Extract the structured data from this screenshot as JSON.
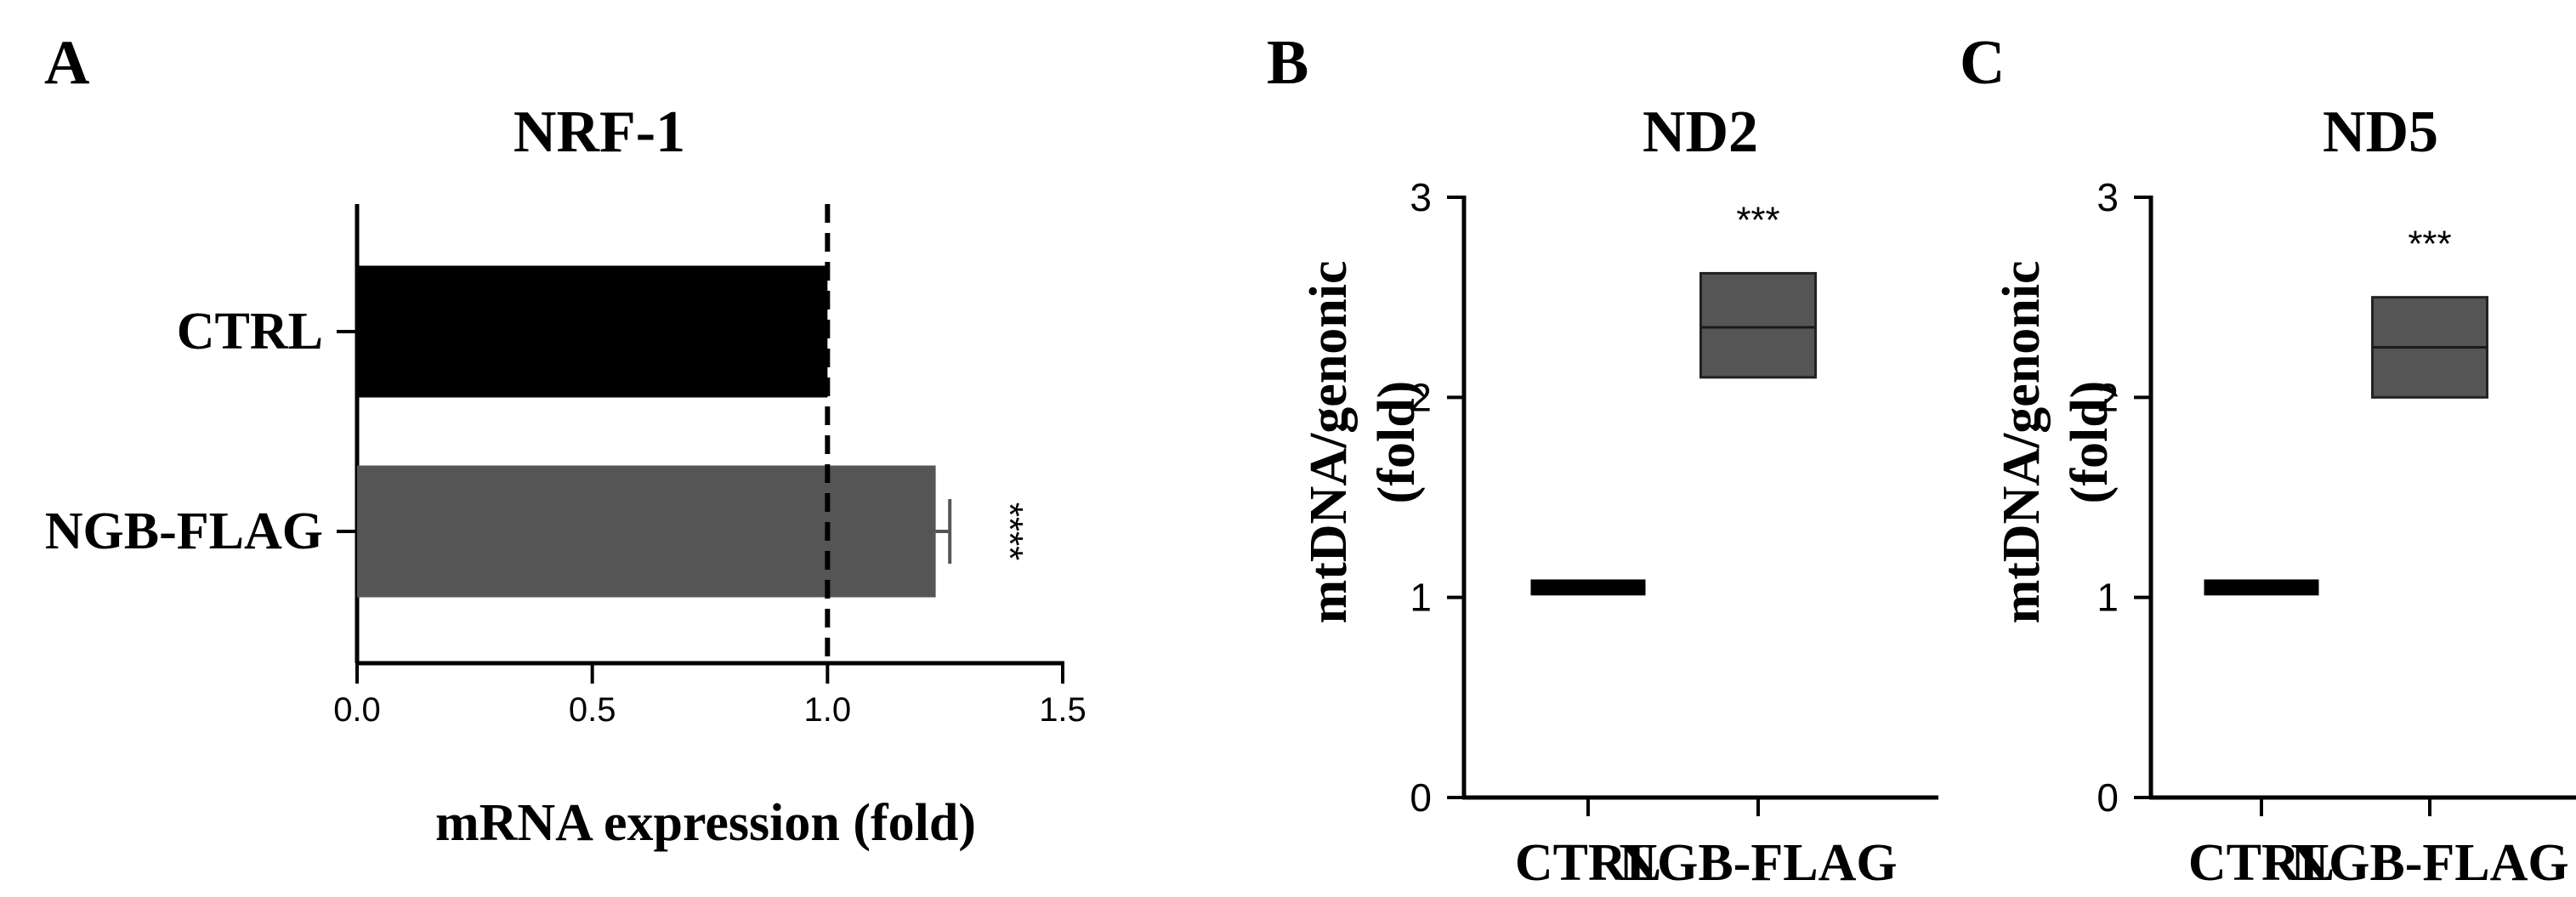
{
  "figure": {
    "colors": {
      "ctrl": "#000000",
      "ngb": "#555555",
      "axis": "#000000",
      "errorbar": "#555555"
    }
  },
  "chart_data": [
    {
      "panel": "A",
      "type": "bar",
      "orientation": "horizontal",
      "title": "NRF-1",
      "categories": [
        "CTRL",
        "NGB-FLAG"
      ],
      "values": [
        1.0,
        1.23
      ],
      "errors": [
        0.0,
        0.03
      ],
      "xlabel": "mRNA expression (fold)",
      "ylabel": "",
      "xlim": [
        0.0,
        1.5
      ],
      "xticks": [
        0.0,
        0.5,
        1.0,
        1.5
      ],
      "xtick_labels": [
        "0.0",
        "0.5",
        "1.0",
        "1.5"
      ],
      "reference_line": 1.0,
      "annotations": [
        {
          "category": "NGB-FLAG",
          "text": "****"
        }
      ]
    },
    {
      "panel": "B",
      "type": "box",
      "title": "ND2",
      "categories": [
        "CTRL",
        "NGB-FLAG"
      ],
      "boxes": [
        {
          "low": 1.01,
          "high": 1.09,
          "median": 1.05
        },
        {
          "low": 2.1,
          "high": 2.62,
          "median": 2.35
        }
      ],
      "xlabel": "",
      "ylabel": "mtDNA/genonic (fold)",
      "ylabel_lines": [
        "mtDNA/genonic",
        "(fold)"
      ],
      "ylim": [
        0,
        3
      ],
      "yticks": [
        0,
        1,
        2,
        3
      ],
      "ytick_labels": [
        "0",
        "1",
        "2",
        "3"
      ],
      "annotations": [
        {
          "category": "NGB-FLAG",
          "text": "***"
        }
      ]
    },
    {
      "panel": "C",
      "type": "box",
      "title": "ND5",
      "categories": [
        "CTRL",
        "NGB-FLAG"
      ],
      "boxes": [
        {
          "low": 1.01,
          "high": 1.09,
          "median": 1.05
        },
        {
          "low": 2.0,
          "high": 2.5,
          "median": 2.25
        }
      ],
      "xlabel": "",
      "ylabel": "mtDNA/genonic (fold)",
      "ylabel_lines": [
        "mtDNA/genonic",
        "(fold)"
      ],
      "ylim": [
        0,
        3
      ],
      "yticks": [
        0,
        1,
        2,
        3
      ],
      "ytick_labels": [
        "0",
        "1",
        "2",
        "3"
      ],
      "annotations": [
        {
          "category": "NGB-FLAG",
          "text": "***"
        }
      ]
    }
  ]
}
